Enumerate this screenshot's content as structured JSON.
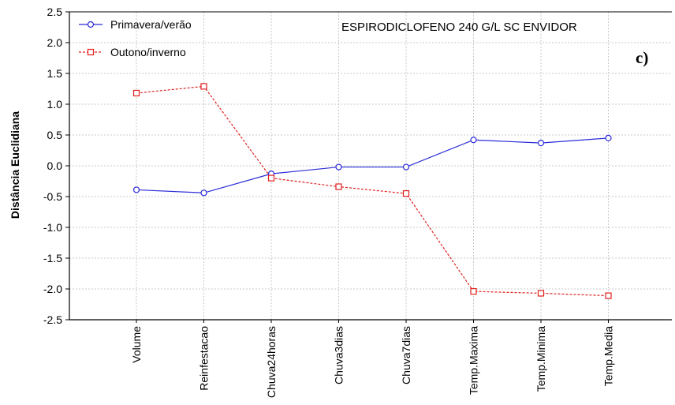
{
  "chart_data": {
    "type": "line",
    "title": "ESPIRODICLOFENO 240 G/L SC ENVIDOR",
    "panel_label": "c)",
    "ylabel": "Distância Euclidiana",
    "xlabel": "",
    "categories": [
      "Volume",
      "Reinfestacao",
      "Chuva24horas",
      "Chuva3dias",
      "Chuva7dias",
      "Temp.Maxima",
      "Temp.Minima",
      "Temp.Media"
    ],
    "ylim": [
      -2.5,
      2.5
    ],
    "yticks": [
      2.5,
      2.0,
      1.5,
      1.0,
      0.5,
      0.0,
      -0.5,
      -1.0,
      -1.5,
      -2.0,
      -2.5
    ],
    "ytick_labels": [
      "2.5",
      "2.0",
      "1.5",
      "1.0",
      "0.5",
      "0.0",
      "-0.5",
      "-1.0",
      "-1.5",
      "-2.0",
      "-2.5"
    ],
    "grid": true,
    "legend_position": "top-left",
    "series": [
      {
        "name": "Primavera/verão",
        "color": "#2a2ad8",
        "marker": "circle",
        "line_style": "solid",
        "values": [
          -0.39,
          -0.44,
          -0.13,
          -0.02,
          -0.02,
          0.42,
          0.37,
          0.45
        ]
      },
      {
        "name": "Outono/inverno",
        "color": "#e02020",
        "marker": "square",
        "line_style": "dashed",
        "values": [
          1.18,
          1.29,
          -0.2,
          -0.34,
          -0.45,
          -2.04,
          -2.07,
          -2.11
        ]
      }
    ]
  }
}
